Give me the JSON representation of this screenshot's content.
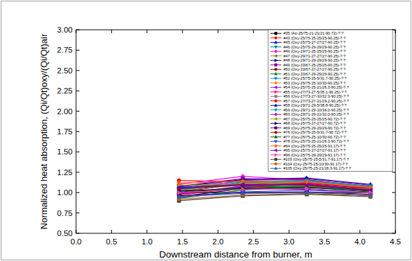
{
  "chart_data": {
    "type": "line",
    "x_label": "Downstream distance from burner, m",
    "y_label": "Normalized heat absorption, (Qi/Qt)oxy/(Qi/Qt)air",
    "x": [
      1.45,
      2.35,
      3.25,
      4.15
    ],
    "xlim": [
      0,
      4.5
    ],
    "xticks": [
      {
        "value": 0,
        "label": "0.0"
      },
      0.5,
      {
        "value": 1,
        "label": "1.0"
      },
      1.5,
      {
        "value": 2,
        "label": "2.0"
      },
      2.5,
      {
        "value": 3,
        "label": "3.0"
      },
      3.5,
      {
        "value": 4,
        "label": "4.0"
      },
      4.5
    ],
    "ylim": [
      0.5,
      3.0
    ],
    "yticks": [
      {
        "value": 0.5,
        "label": "0.50"
      },
      0.75,
      {
        "value": 1,
        "label": "1.00"
      },
      1.25,
      {
        "value": 1.5,
        "label": "1.50"
      },
      1.75,
      {
        "value": 2,
        "label": "2.00"
      },
      2.25,
      {
        "value": 2.5,
        "label": "2.50"
      },
      2.75,
      {
        "value": 3,
        "label": "3.00"
      }
    ],
    "grid": false,
    "legend": "top-right",
    "series": [
      {
        "name": "#35 (Air-25/75-21-21/21-90.72)-? ?",
        "color": "#000000",
        "marker": "square",
        "values": [
          1.0,
          1.0,
          1.0,
          1.0
        ]
      },
      {
        "name": "#43 (Oxy-25/75-25-25/25-90.25)-? ?",
        "color": "#ff0000",
        "marker": "circle",
        "values": [
          1.15,
          1.13,
          1.12,
          1.05
        ]
      },
      {
        "name": "#45 (Oxy-25/75-27-27/27-90.25)-? ?",
        "color": "#0000ff",
        "marker": "triangle-up",
        "values": [
          1.05,
          1.12,
          1.1,
          1.02
        ]
      },
      {
        "name": "#46 (Oxy-25/75-29-29/29-90.25)-? ?",
        "color": "#008080",
        "marker": "triangle-down",
        "values": [
          0.98,
          1.08,
          1.07,
          1.0
        ]
      },
      {
        "name": "#46 (Oxy-29/71-25-25/25-90.25)-? ?",
        "color": "#ff00ff",
        "marker": "diamond",
        "values": [
          1.1,
          1.2,
          1.15,
          1.08
        ]
      },
      {
        "name": "#47 (Oxy-29/71-27-27/27-90.25)-? ?",
        "color": "#808000",
        "marker": "triangle-left",
        "values": [
          1.02,
          1.1,
          1.12,
          1.05
        ]
      },
      {
        "name": "#48 (Oxy-29/71-29-29/29-90.25)-? ?",
        "color": "#000080",
        "marker": "triangle-right",
        "values": [
          0.95,
          1.05,
          1.06,
          1.03
        ]
      },
      {
        "name": "#49 (Oxy-33/67-25-25/25-90.25)-? ?",
        "color": "#800080",
        "marker": "square",
        "values": [
          1.08,
          1.17,
          1.16,
          1.07
        ]
      },
      {
        "name": "#50 (Oxy-33/67-27-27/27-90.25)-? ?",
        "color": "#800000",
        "marker": "circle",
        "values": [
          1.0,
          1.12,
          1.14,
          1.06
        ]
      },
      {
        "name": "#51 (Oxy-33/67-29-29/29-90.25)-? ?",
        "color": "#008000",
        "marker": "triangle-up",
        "values": [
          0.93,
          1.03,
          1.08,
          1.02
        ]
      },
      {
        "name": "#52 (Oxy-25/75-25-5/31.7-90.25)-? ?",
        "color": "#0080ff",
        "marker": "triangle-down",
        "values": [
          1.06,
          1.14,
          1.15,
          1.08
        ]
      },
      {
        "name": "#53 (Oxy-25/75-25-10/30-90.25)-? ?",
        "color": "#ff8000",
        "marker": "diamond",
        "values": [
          1.03,
          1.12,
          1.13,
          1.06
        ]
      },
      {
        "name": "#54 (Oxy-25/75-25-21/26.3-90.25)-? ?",
        "color": "#8000ff",
        "marker": "triangle-left",
        "values": [
          0.99,
          1.08,
          1.1,
          1.04
        ]
      },
      {
        "name": "#55 (Oxy-27/73-27-5/35.1-90.25)-? ?",
        "color": "#ff0080",
        "marker": "triangle-right",
        "values": [
          1.04,
          1.15,
          1.17,
          1.09
        ]
      },
      {
        "name": "#56 (Oxy-27/73-27-10/32.3-90.25)-? ?",
        "color": "#808080",
        "marker": "square",
        "values": [
          1.01,
          1.11,
          1.14,
          1.07
        ]
      },
      {
        "name": "#57 (Oxy-27/73-27-21/29.2-90.25)-? ?",
        "color": "#e00000",
        "marker": "circle",
        "values": [
          0.97,
          1.06,
          1.11,
          1.05
        ]
      },
      {
        "name": "#58 (Oxy-29/71-29-5/38.8-90.25)-? ?",
        "color": "#0000c0",
        "marker": "triangle-up",
        "values": [
          1.07,
          1.16,
          1.18,
          1.1
        ]
      },
      {
        "name": "#59 (Oxy-29/71-29-10/36.0-90.25)-? ?",
        "color": "#00a0a0",
        "marker": "triangle-down",
        "values": [
          1.03,
          1.13,
          1.15,
          1.08
        ]
      },
      {
        "name": "#60 (Oxy-29/71-29-21/32.0-90.25)-? ?",
        "color": "#c000c0",
        "marker": "diamond",
        "values": [
          0.98,
          1.07,
          1.12,
          1.06
        ]
      },
      {
        "name": "#67 (Oxy-25/75-25-25/25-90.72)-? ?",
        "color": "#a0a000",
        "marker": "triangle-left",
        "values": [
          1.09,
          1.1,
          1.08,
          1.04
        ]
      },
      {
        "name": "#68 (Oxy-25/75-27-27/27-90.72)-? ?",
        "color": "#000060",
        "marker": "triangle-right",
        "values": [
          1.02,
          1.05,
          1.04,
          1.01
        ]
      },
      {
        "name": "#69 (Oxy-25/75-29-29/29-90.72)-? ?",
        "color": "#600060",
        "marker": "square",
        "values": [
          0.96,
          1.0,
          1.01,
          0.98
        ]
      },
      {
        "name": "#76 (Oxy-25/75-25-5/31.7-90.72)-? ?",
        "color": "#a00000",
        "marker": "circle",
        "values": [
          1.05,
          1.09,
          1.1,
          1.03
        ]
      },
      {
        "name": "#77 (Oxy-25/75-25-10/30-90.72)-? ?",
        "color": "#006000",
        "marker": "triangle-up",
        "values": [
          1.0,
          1.06,
          1.07,
          1.02
        ]
      },
      {
        "name": "#78 (Oxy-25/75-25-21/26.3-90.72)-? ?",
        "color": "#4040ff",
        "marker": "triangle-down",
        "values": [
          0.94,
          1.01,
          1.03,
          1.0
        ]
      },
      {
        "name": "#94 (Oxy-25/75-25-25/25-91.17)-? ?",
        "color": "#ff6000",
        "marker": "diamond",
        "values": [
          1.12,
          1.14,
          1.13,
          1.06
        ]
      },
      {
        "name": "#95 (Oxy-25/75-27-27/27-91.17)-? ?",
        "color": "#6000c0",
        "marker": "triangle-left",
        "values": [
          1.06,
          1.1,
          1.09,
          1.03
        ]
      },
      {
        "name": "#96 (Oxy-25/75-29-29/29-91.17)-? ?",
        "color": "#ff40a0",
        "marker": "triangle-right",
        "values": [
          1.0,
          1.04,
          1.05,
          1.0
        ]
      },
      {
        "name": "#103 (Oxy-25/75-25-5/31.7-91.17)-? ?",
        "color": "#404040",
        "marker": "square",
        "values": [
          0.9,
          0.96,
          0.98,
          0.95
        ]
      },
      {
        "name": "#104 (Oxy-25/75-25-10/30-91.17)-? ?",
        "color": "#c06000",
        "marker": "circle",
        "values": [
          0.92,
          0.97,
          0.99,
          0.96
        ]
      },
      {
        "name": "#105 (Oxy-25/75-25-21/26.3-91.17)-? ?",
        "color": "#2060c0",
        "marker": "triangle-up",
        "values": [
          0.95,
          0.99,
          1.0,
          0.97
        ]
      }
    ]
  }
}
